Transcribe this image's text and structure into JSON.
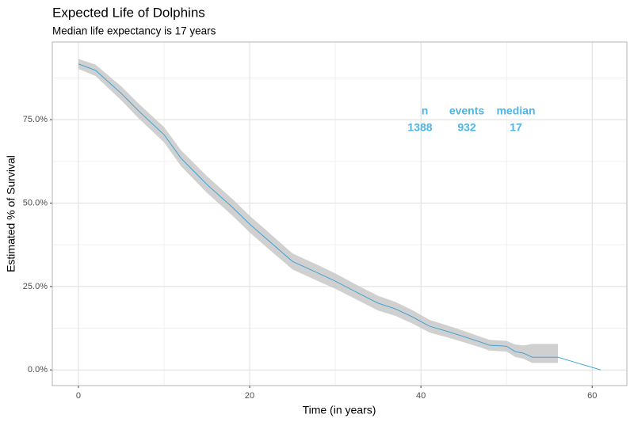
{
  "chart_data": {
    "type": "line",
    "title": "Expected Life of Dolphins",
    "subtitle": "Median life expectancy is 17 years",
    "x_label": "Time (in years)",
    "y_label": "Estimated % of Survival",
    "x": [
      0,
      2,
      5,
      7,
      10,
      12,
      15,
      18,
      20,
      22,
      25,
      28,
      30,
      33,
      35,
      37,
      39,
      41,
      43,
      45,
      47,
      48,
      50,
      51,
      52,
      53,
      56,
      61
    ],
    "values": [
      91.7,
      89.8,
      82.9,
      77.7,
      70.5,
      63.4,
      55.6,
      48.7,
      43.7,
      39.2,
      32.5,
      29,
      26.6,
      22.6,
      20,
      18.3,
      15.9,
      13.1,
      11.6,
      10,
      8.3,
      7.4,
      7.1,
      5.5,
      5,
      3.8,
      3.8,
      0
    ],
    "lower": [
      90.2,
      88.1,
      80.8,
      75.5,
      68.2,
      61,
      53.1,
      46.2,
      41.2,
      36.7,
      30.1,
      26.6,
      24.3,
      20.4,
      17.8,
      16.2,
      13.9,
      11.2,
      9.8,
      8.3,
      6.7,
      5.8,
      5.5,
      3.9,
      3.3,
      2.1,
      2.1,
      null
    ],
    "upper": [
      93.2,
      91.5,
      85,
      79.9,
      72.8,
      65.8,
      58.1,
      51.2,
      46.2,
      41.7,
      34.9,
      31.4,
      28.9,
      24.8,
      22.2,
      20.4,
      17.9,
      15,
      13.4,
      11.7,
      9.9,
      9,
      8.7,
      7.6,
      7.3,
      7.8,
      7.8,
      null
    ],
    "color": "#2f9fd6",
    "band_color": "#c8c8c8",
    "xlim": [
      -3.05,
      64.05
    ],
    "ylim": [
      -4.7,
      98.3
    ],
    "xticks": [
      0,
      20,
      40,
      60
    ],
    "xminor": [
      10,
      30,
      50
    ],
    "yticks": [
      {
        "value": 0,
        "label": "0.0%"
      },
      {
        "value": 25,
        "label": "25.0%"
      },
      {
        "value": 50,
        "label": "50.0%"
      },
      {
        "value": 75,
        "label": "75.0%"
      }
    ],
    "yminor": [
      12.5,
      37.5,
      62.5,
      87.5
    ],
    "grid": true,
    "annotation": {
      "header": [
        "n",
        "events",
        "median"
      ],
      "row": [
        1388,
        932,
        17
      ],
      "color": "#4db6e6"
    }
  }
}
